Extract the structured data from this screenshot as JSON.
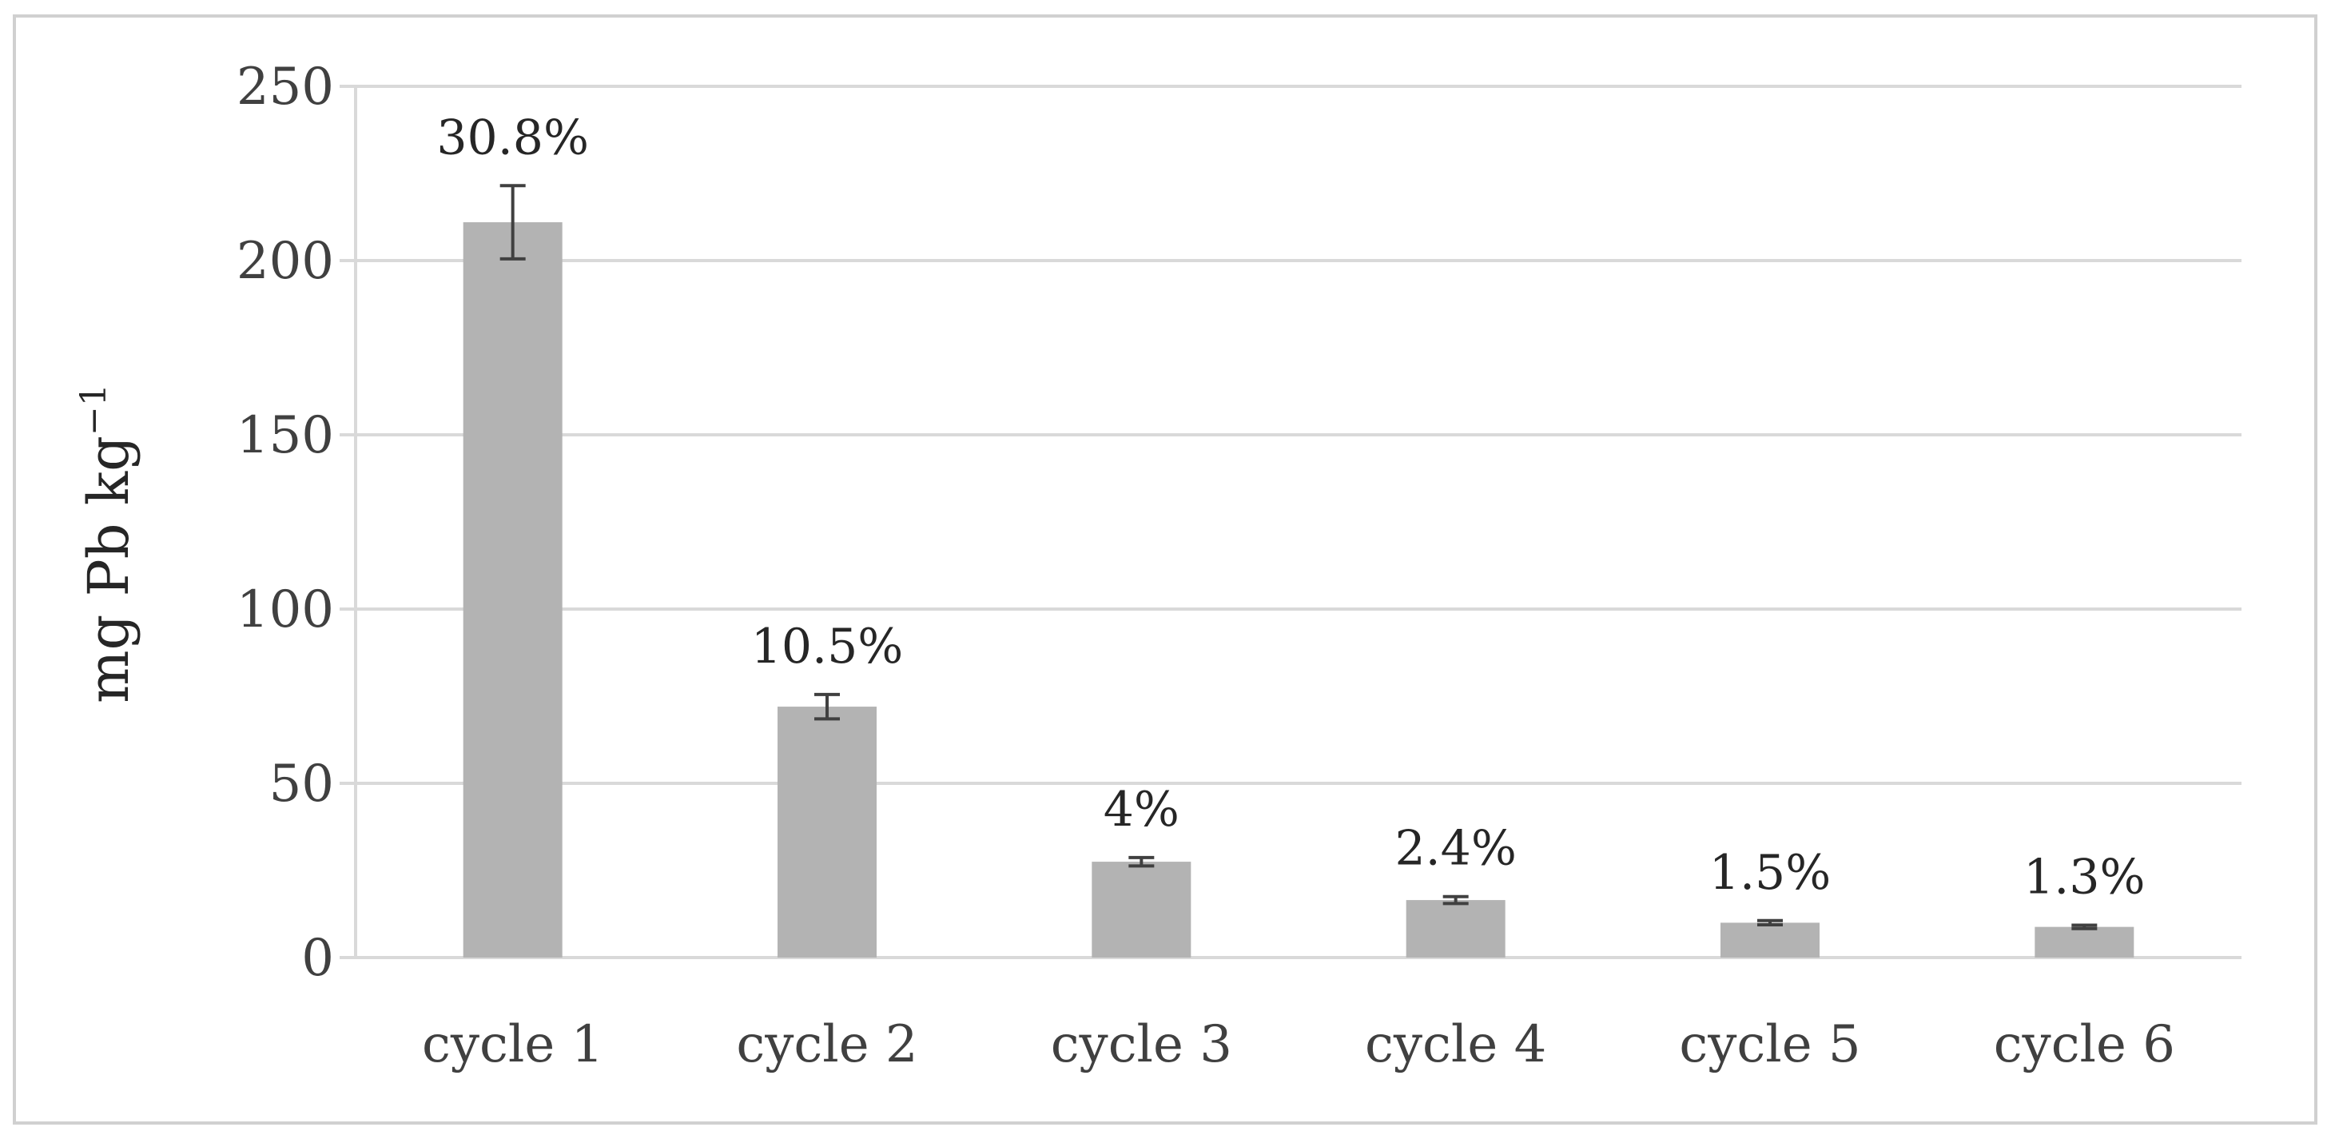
{
  "chart_data": {
    "type": "bar",
    "title": "",
    "xlabel": "",
    "ylabel": "mg Pb kg",
    "ylabel_superscript": "−1",
    "ylim": [
      0,
      250
    ],
    "yticks": [
      0,
      50,
      100,
      150,
      200,
      250
    ],
    "grid": true,
    "categories": [
      "cycle 1",
      "cycle 2",
      "cycle 3",
      "cycle 4",
      "cycle 5",
      "cycle 6"
    ],
    "values": [
      211,
      72,
      27.5,
      16.5,
      10,
      8.8
    ],
    "error": [
      10.5,
      3.5,
      1.2,
      1.0,
      0.6,
      0.5
    ],
    "labels": [
      "30.8%",
      "10.5%",
      "4%",
      "2.4%",
      "1.5%",
      "1.3%"
    ],
    "colors": {
      "bar": "#b3b3b3",
      "error": "#404040",
      "grid": "#d9d9d9"
    }
  }
}
